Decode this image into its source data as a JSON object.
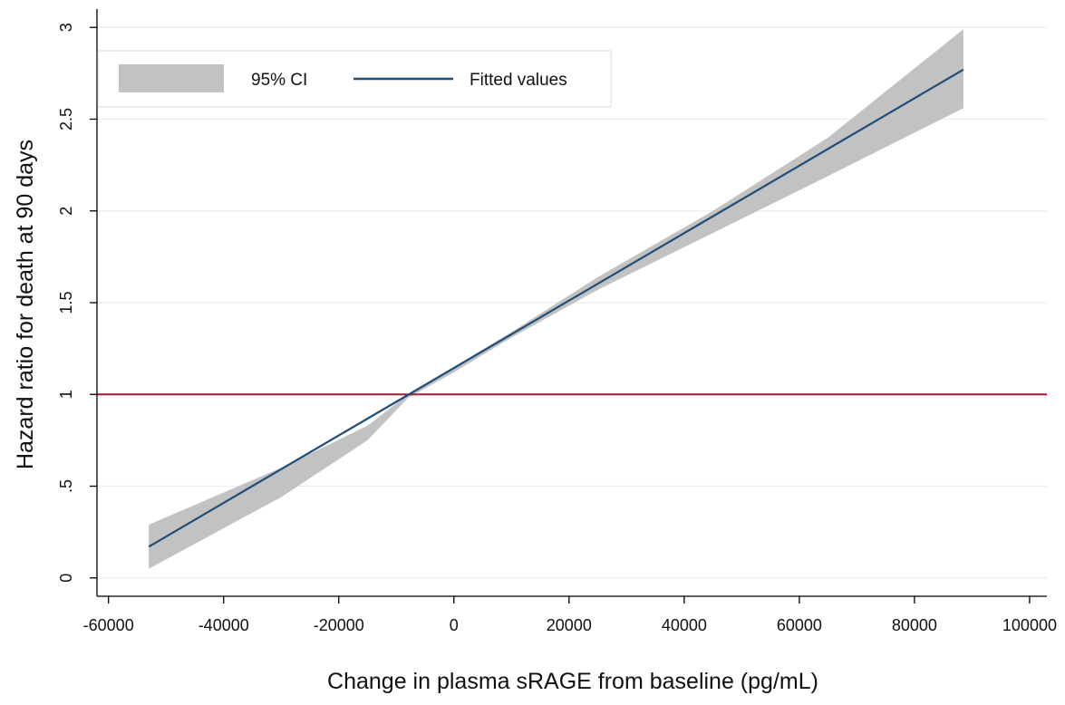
{
  "chart_data": {
    "type": "line",
    "title": "",
    "xlabel": "Change in plasma sRAGE from baseline (pg/mL)",
    "ylabel": "Hazard ratio for death at 90 days",
    "xlim": [
      -62000,
      103000
    ],
    "ylim": [
      -0.1,
      3.1
    ],
    "x_ticks": [
      -60000,
      -40000,
      -20000,
      0,
      20000,
      40000,
      60000,
      80000,
      100000
    ],
    "x_tick_labels": [
      "-60000",
      "-40000",
      "-20000",
      "0",
      "20000",
      "40000",
      "60000",
      "80000",
      "100000"
    ],
    "y_ticks": [
      0,
      0.5,
      1,
      1.5,
      2,
      2.5,
      3
    ],
    "y_tick_labels": [
      "0",
      ".5",
      "1",
      "1.5",
      "2",
      "2.5",
      "3"
    ],
    "grid": true,
    "legend_position": "top-left",
    "series": [
      {
        "name": "Fitted values",
        "kind": "line",
        "color": "#1f4e79",
        "x": [
          -53000,
          88500
        ],
        "y": [
          0.17,
          2.77
        ]
      },
      {
        "name": "95% CI",
        "kind": "band",
        "color": "#c2c2c2",
        "x": [
          -53000,
          -30000,
          -15000,
          -8000,
          0,
          10000,
          25000,
          45000,
          65000,
          88500
        ],
        "lower": [
          0.05,
          0.44,
          0.75,
          0.98,
          1.12,
          1.31,
          1.57,
          1.88,
          2.19,
          2.56
        ],
        "upper": [
          0.29,
          0.6,
          0.83,
          1.0,
          1.15,
          1.34,
          1.64,
          2.0,
          2.4,
          2.99
        ]
      },
      {
        "name": "",
        "kind": "reference-line",
        "color": "#a6192e",
        "y": 1
      }
    ],
    "legend": [
      {
        "label": "95% CI",
        "swatch": "band",
        "color": "#c2c2c2"
      },
      {
        "label": "Fitted values",
        "swatch": "line",
        "color": "#1f4e79"
      }
    ]
  }
}
